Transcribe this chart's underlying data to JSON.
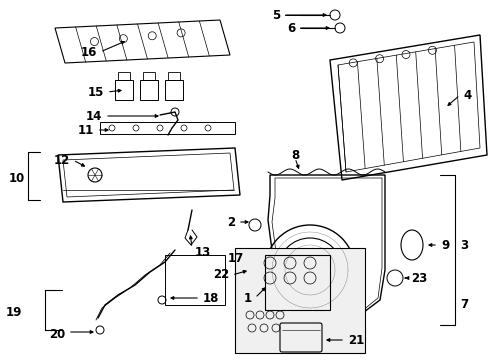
{
  "background_color": "#ffffff",
  "figsize": [
    4.89,
    3.6
  ],
  "dpi": 100,
  "line_color": "#000000",
  "label_fontsize": 8.5
}
